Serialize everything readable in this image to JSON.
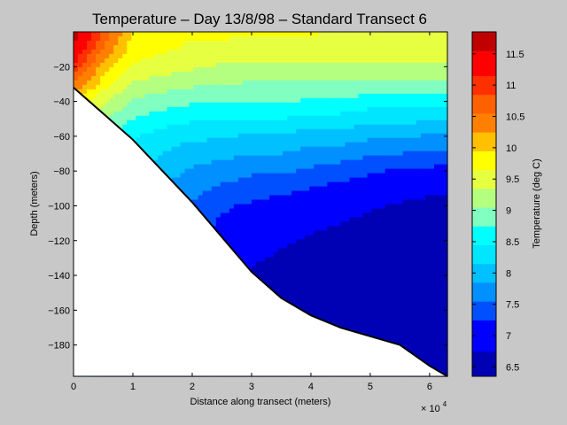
{
  "chart_data": {
    "type": "heatmap",
    "subtype": "filled-contour",
    "title": "Temperature – Day 13/8/98 – Standard Transect 6",
    "xlabel": "Distance along transect (meters)",
    "ylabel": "Depth (meters)",
    "x_exponent_label": "× 10",
    "x_exponent_power": "4",
    "xlim": [
      0,
      63000
    ],
    "ylim": [
      -198,
      0
    ],
    "x_ticks": [
      0,
      10000,
      20000,
      30000,
      40000,
      50000,
      60000
    ],
    "x_tick_labels": [
      "0",
      "1",
      "2",
      "3",
      "4",
      "5",
      "6"
    ],
    "y_ticks": [
      -20,
      -40,
      -60,
      -80,
      -100,
      -120,
      -140,
      -160,
      -180
    ],
    "y_tick_labels": [
      "−20",
      "−40",
      "−60",
      "−80",
      "−100",
      "−120",
      "−140",
      "−160",
      "−180"
    ],
    "colorbar": {
      "label": "Temperature (deg C)",
      "range": [
        6.35,
        11.85
      ],
      "ticks": [
        6.5,
        7,
        7.5,
        8,
        8.5,
        9,
        9.5,
        10,
        10.5,
        11,
        11.5
      ],
      "tick_labels": [
        "6.5",
        "7",
        "7.5",
        "8",
        "8.5",
        "9",
        "9.5",
        "10",
        "10.5",
        "11",
        "11.5"
      ],
      "levels": [
        {
          "min": 6.35,
          "max": 6.75,
          "color": "#0000b4"
        },
        {
          "min": 6.75,
          "max": 7.25,
          "color": "#0000ff"
        },
        {
          "min": 7.25,
          "max": 7.55,
          "color": "#0050ff"
        },
        {
          "min": 7.55,
          "max": 7.85,
          "color": "#0090ff"
        },
        {
          "min": 7.85,
          "max": 8.15,
          "color": "#00c0ff"
        },
        {
          "min": 8.15,
          "max": 8.45,
          "color": "#00e6ff"
        },
        {
          "min": 8.45,
          "max": 8.75,
          "color": "#00ffff"
        },
        {
          "min": 8.75,
          "max": 9.05,
          "color": "#80ffc0"
        },
        {
          "min": 9.05,
          "max": 9.35,
          "color": "#b4ff80"
        },
        {
          "min": 9.35,
          "max": 9.65,
          "color": "#e6ff40"
        },
        {
          "min": 9.65,
          "max": 9.95,
          "color": "#ffff00"
        },
        {
          "min": 9.95,
          "max": 10.25,
          "color": "#ffc000"
        },
        {
          "min": 10.25,
          "max": 10.55,
          "color": "#ff8000"
        },
        {
          "min": 10.55,
          "max": 10.85,
          "color": "#ff6000"
        },
        {
          "min": 10.85,
          "max": 11.15,
          "color": "#ff3000"
        },
        {
          "min": 11.15,
          "max": 11.55,
          "color": "#ff0000"
        },
        {
          "min": 11.55,
          "max": 11.85,
          "color": "#c00000"
        }
      ]
    },
    "bottom_profile": [
      [
        0,
        -32
      ],
      [
        5000,
        -47
      ],
      [
        10000,
        -62
      ],
      [
        15000,
        -80
      ],
      [
        20000,
        -98
      ],
      [
        25000,
        -118
      ],
      [
        30000,
        -138
      ],
      [
        35000,
        -153
      ],
      [
        40000,
        -163
      ],
      [
        45000,
        -170
      ],
      [
        50000,
        -175
      ],
      [
        55000,
        -180
      ],
      [
        60000,
        -192
      ],
      [
        63000,
        -198
      ]
    ],
    "temperature_profiles": {
      "x": [
        0,
        5000,
        10000,
        15000,
        20000,
        25000,
        30000,
        35000,
        40000,
        45000,
        50000,
        55000,
        60000,
        63000
      ],
      "depth_knots": [
        0,
        -10,
        -20,
        -30,
        -40,
        -60,
        -80,
        -100,
        -120,
        -140,
        -160,
        -180,
        -198
      ],
      "values": [
        [
          11.8,
          11.5,
          11.1,
          10.5,
          10.0,
          9.6,
          9.4,
          9.2,
          9.0,
          8.8,
          8.6,
          8.4,
          8.2
        ],
        [
          10.8,
          10.5,
          10.1,
          9.8,
          9.4,
          8.8,
          8.5,
          8.2,
          8.0,
          7.8,
          7.6,
          7.4,
          7.2
        ],
        [
          9.9,
          9.8,
          9.6,
          9.3,
          9.0,
          8.5,
          8.2,
          7.9,
          7.6,
          7.4,
          7.2,
          7.0,
          6.9
        ],
        [
          9.7,
          9.7,
          9.5,
          9.2,
          8.9,
          8.3,
          8.0,
          7.7,
          7.5,
          7.3,
          7.1,
          6.9,
          6.8
        ],
        [
          9.7,
          9.6,
          9.4,
          9.1,
          8.8,
          8.2,
          7.8,
          7.5,
          7.3,
          7.1,
          7.0,
          6.8,
          6.7
        ],
        [
          9.7,
          9.6,
          9.3,
          9.1,
          8.8,
          8.2,
          7.7,
          7.3,
          7.1,
          6.9,
          6.7,
          6.6,
          6.5
        ],
        [
          9.7,
          9.5,
          9.3,
          9.0,
          8.8,
          8.1,
          7.6,
          7.2,
          6.9,
          6.7,
          6.6,
          6.5,
          6.5
        ],
        [
          9.7,
          9.5,
          9.3,
          9.0,
          8.8,
          8.1,
          7.6,
          7.1,
          6.8,
          6.6,
          6.5,
          6.5,
          6.5
        ],
        [
          9.7,
          9.5,
          9.3,
          9.0,
          8.7,
          8.0,
          7.5,
          7.0,
          6.7,
          6.5,
          6.5,
          6.5,
          6.5
        ],
        [
          9.6,
          9.5,
          9.3,
          9.0,
          8.7,
          8.0,
          7.4,
          6.9,
          6.6,
          6.5,
          6.5,
          6.5,
          6.5
        ],
        [
          9.6,
          9.5,
          9.3,
          9.0,
          8.6,
          7.9,
          7.3,
          6.8,
          6.5,
          6.5,
          6.5,
          6.5,
          6.5
        ],
        [
          9.6,
          9.5,
          9.3,
          9.0,
          8.6,
          7.9,
          7.2,
          6.7,
          6.5,
          6.5,
          6.5,
          6.5,
          6.5
        ],
        [
          9.6,
          9.5,
          9.3,
          9.0,
          8.6,
          7.8,
          7.2,
          6.6,
          6.5,
          6.5,
          6.5,
          6.5,
          6.5
        ],
        [
          9.6,
          9.5,
          9.3,
          9.0,
          8.6,
          7.8,
          7.1,
          6.6,
          6.5,
          6.5,
          6.5,
          6.5,
          6.5
        ]
      ]
    }
  }
}
